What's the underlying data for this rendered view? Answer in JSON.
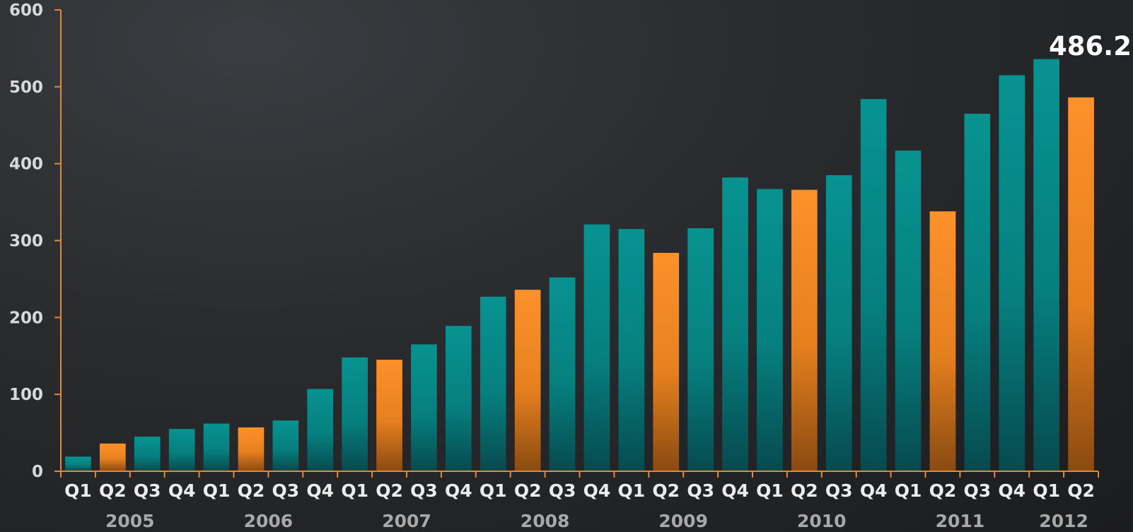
{
  "chart_data": {
    "type": "bar",
    "title": "",
    "xlabel": "",
    "ylabel": "",
    "ylim": [
      0,
      600
    ],
    "yticks": [
      "0",
      "100",
      "200",
      "300",
      "400",
      "500",
      "600"
    ],
    "categories": [
      "Q1",
      "Q2",
      "Q3",
      "Q4",
      "Q1",
      "Q2",
      "Q3",
      "Q4",
      "Q1",
      "Q2",
      "Q3",
      "Q4",
      "Q1",
      "Q2",
      "Q3",
      "Q4",
      "Q1",
      "Q2",
      "Q3",
      "Q4",
      "Q1",
      "Q2",
      "Q3",
      "Q4",
      "Q1",
      "Q2",
      "Q3",
      "Q4",
      "Q1",
      "Q2"
    ],
    "years": [
      {
        "label": "2005",
        "start": 0,
        "end": 3
      },
      {
        "label": "2006",
        "start": 4,
        "end": 7
      },
      {
        "label": "2007",
        "start": 8,
        "end": 11
      },
      {
        "label": "2008",
        "start": 12,
        "end": 15
      },
      {
        "label": "2009",
        "start": 16,
        "end": 19
      },
      {
        "label": "2010",
        "start": 20,
        "end": 23
      },
      {
        "label": "2011",
        "start": 24,
        "end": 27
      },
      {
        "label": "2012",
        "start": 28,
        "end": 29
      }
    ],
    "values": [
      19,
      36,
      45,
      55,
      62,
      57,
      66,
      107,
      148,
      145,
      165,
      189,
      227,
      236,
      252,
      321,
      315,
      284,
      316,
      382,
      367,
      366,
      385,
      484,
      417,
      338,
      465,
      515,
      536,
      486.2
    ],
    "highlight_quarter": "Q2",
    "colors": {
      "default": "#06918f",
      "highlight": "#fb8f2a",
      "axis": "#e6892e"
    },
    "data_labels": [
      {
        "index": 29,
        "text": "486.2"
      }
    ]
  }
}
